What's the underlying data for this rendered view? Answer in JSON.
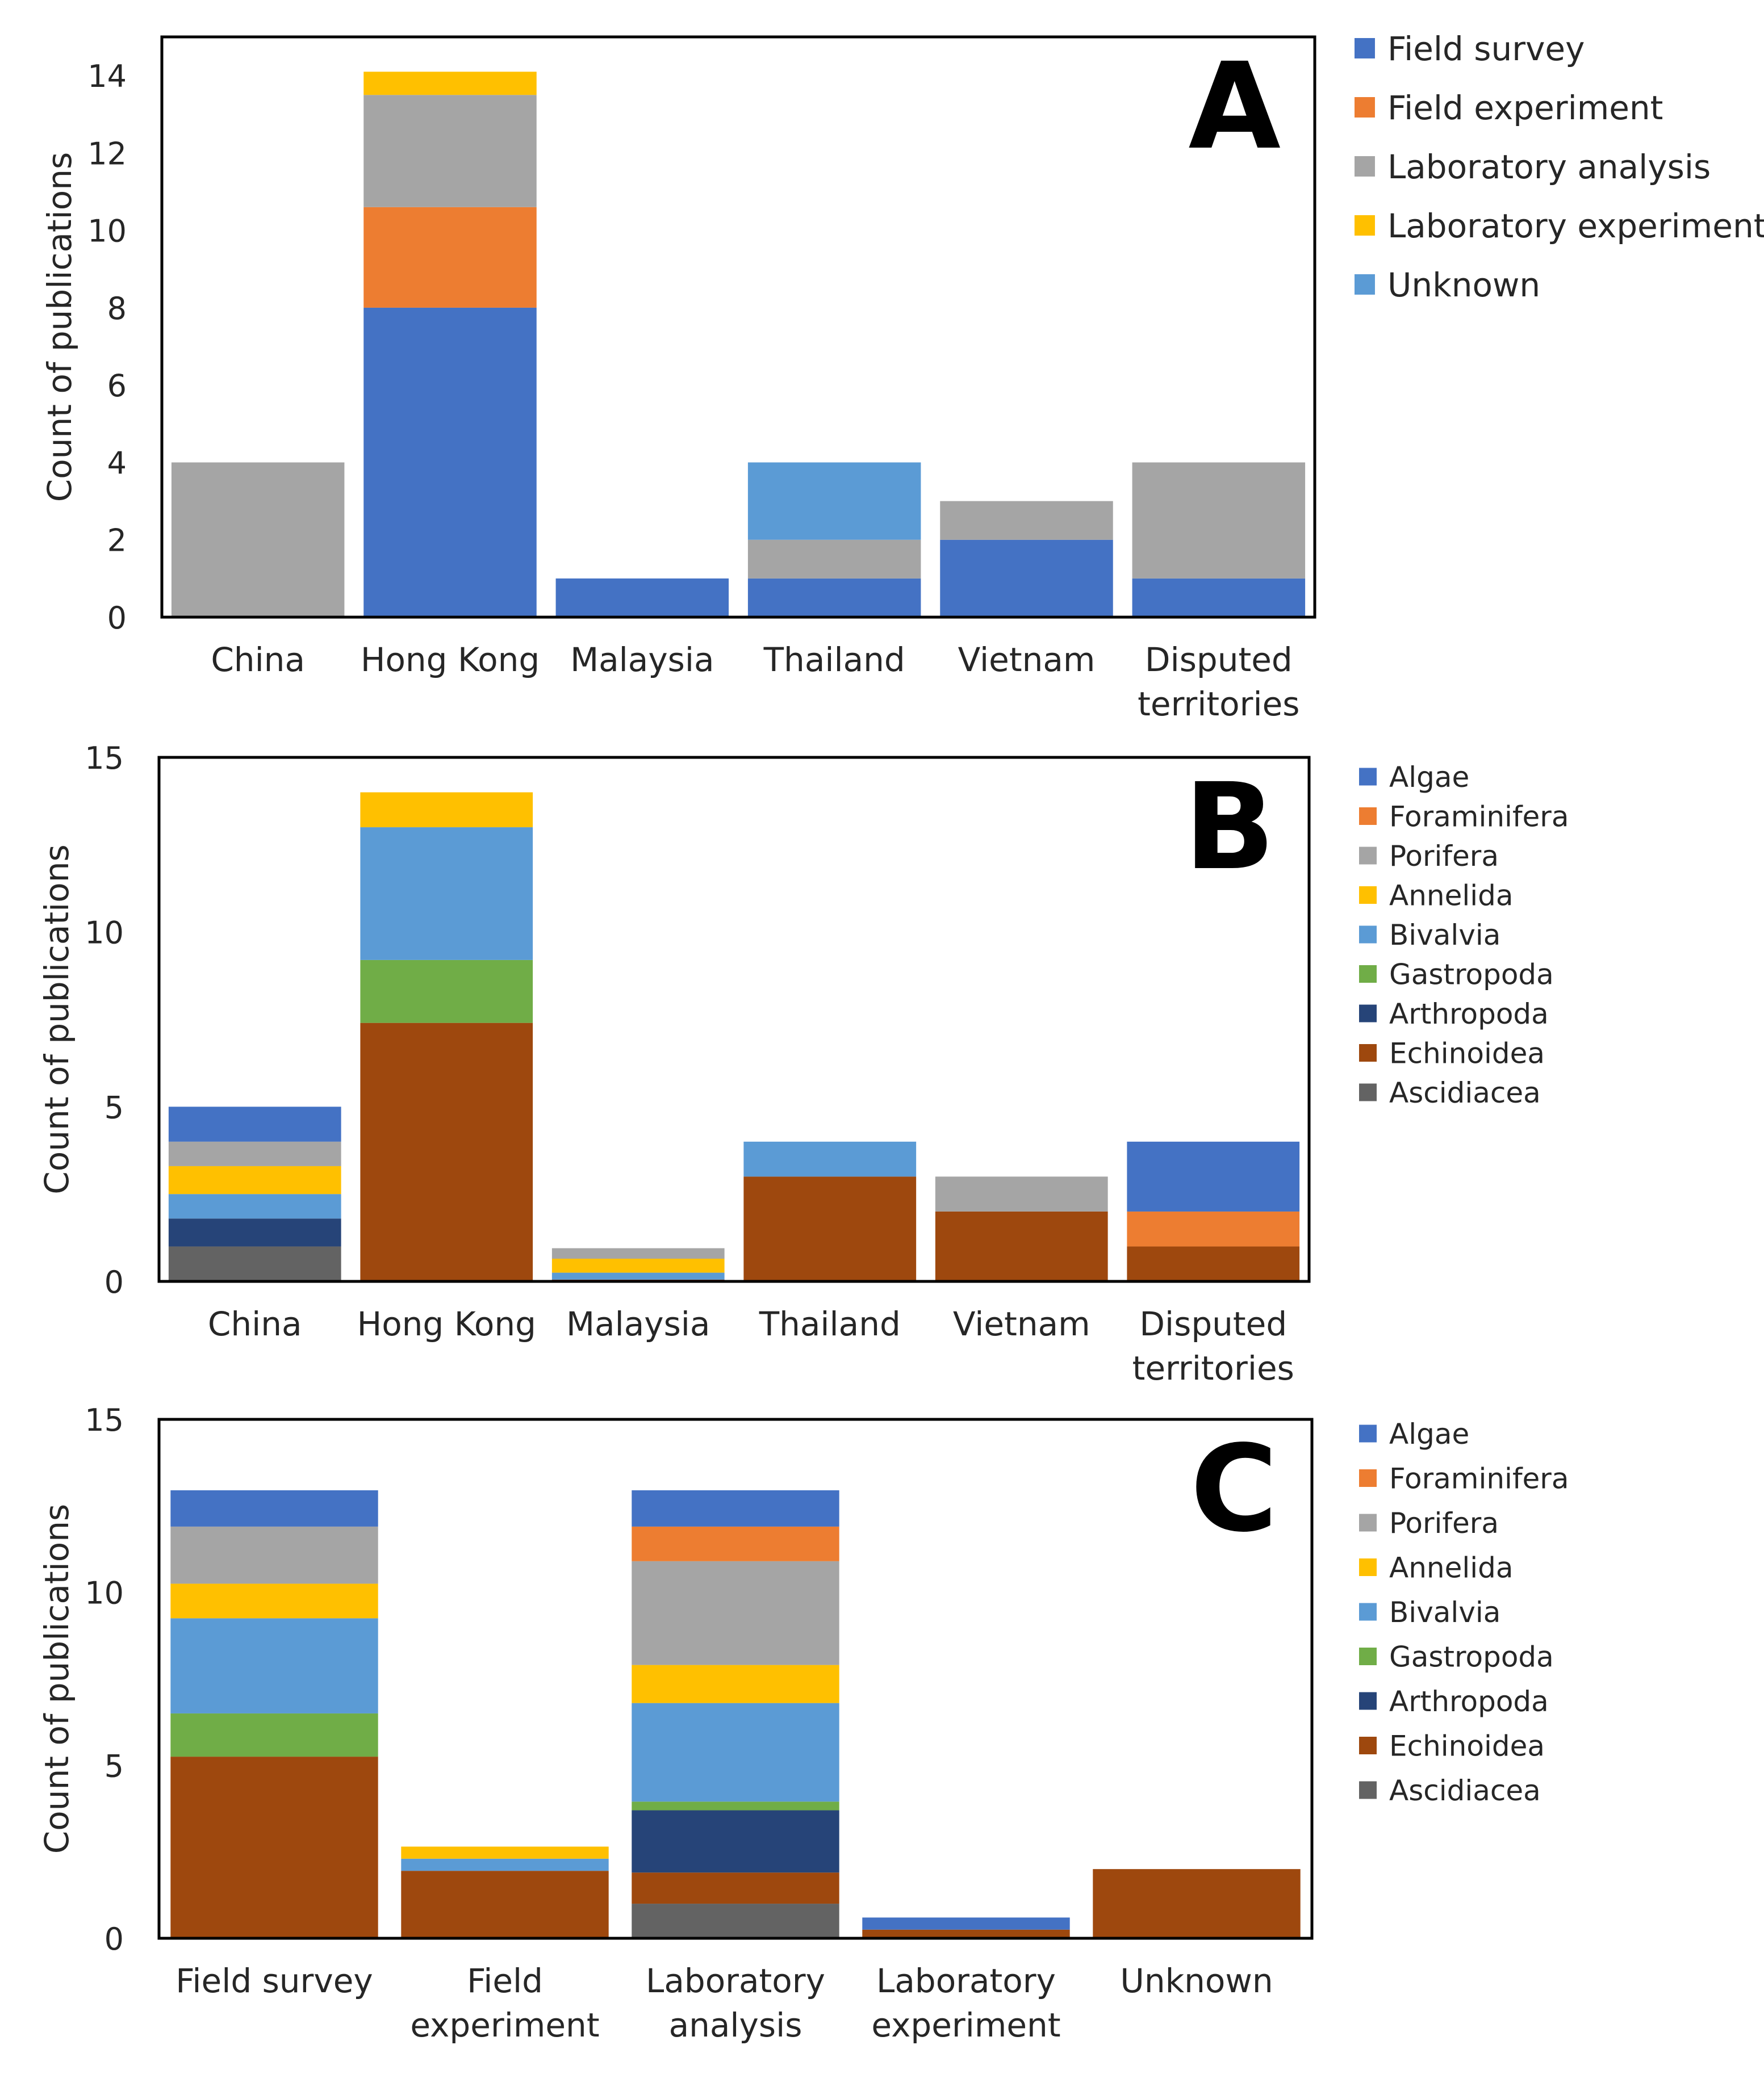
{
  "colors": {
    "Field survey": "#4472C4",
    "Field experiment": "#ED7D31",
    "Laboratory analysis": "#A5A5A5",
    "Laboratory experiment": "#FFC000",
    "Unknown": "#5B9BD5",
    "Algae": "#4472C4",
    "Foraminifera": "#ED7D31",
    "Porifera": "#A5A5A5",
    "Annelida": "#FFC000",
    "Bivalvia": "#5B9BD5",
    "Gastropoda": "#70AD47",
    "Arthropoda": "#264478",
    "Echinoidea": "#9E480E",
    "Ascidiacea": "#636363"
  },
  "chart_data": [
    {
      "type": "bar",
      "stacked": true,
      "panel_label": "A",
      "ylabel": "Count of publications",
      "xlabel": "",
      "ylim": [
        0,
        15
      ],
      "yticks": [
        "0",
        "2",
        "4",
        "6",
        "8",
        "10",
        "12",
        "14"
      ],
      "ytick_values": [
        0,
        2,
        4,
        6,
        8,
        10,
        12,
        14
      ],
      "categories": [
        [
          "China"
        ],
        [
          "Hong Kong"
        ],
        [
          "Malaysia"
        ],
        [
          "Thailand"
        ],
        [
          "Vietnam"
        ],
        [
          "Disputed",
          "territories"
        ]
      ],
      "series": [
        {
          "name": "Field survey",
          "values": [
            0,
            8,
            1,
            1,
            2,
            1
          ]
        },
        {
          "name": "Field experiment",
          "values": [
            0,
            2.6,
            0,
            0,
            0,
            0
          ]
        },
        {
          "name": "Laboratory analysis",
          "values": [
            4,
            2.9,
            0,
            1,
            1,
            3
          ]
        },
        {
          "name": "Laboratory experiment",
          "values": [
            0,
            0.6,
            0,
            0,
            0,
            0
          ]
        },
        {
          "name": "Unknown",
          "values": [
            0,
            0,
            0,
            2,
            0,
            0
          ]
        }
      ],
      "legend": [
        "Field survey",
        "Field experiment",
        "Laboratory analysis",
        "Laboratory experiment",
        "Unknown"
      ],
      "legend_position": "right"
    },
    {
      "type": "bar",
      "stacked": true,
      "panel_label": "B",
      "ylabel": "Count of publications",
      "xlabel": "",
      "ylim": [
        0,
        15
      ],
      "yticks": [
        "0",
        "5",
        "10",
        "15"
      ],
      "ytick_values": [
        0,
        5,
        10,
        15
      ],
      "categories": [
        [
          "China"
        ],
        [
          "Hong Kong"
        ],
        [
          "Malaysia"
        ],
        [
          "Thailand"
        ],
        [
          "Vietnam"
        ],
        [
          "Disputed",
          "territories"
        ]
      ],
      "series": [
        {
          "name": "Ascidiacea",
          "values": [
            1,
            0,
            0,
            0,
            0,
            0
          ]
        },
        {
          "name": "Echinoidea",
          "values": [
            0,
            7.4,
            0.05,
            3,
            2,
            1
          ]
        },
        {
          "name": "Arthropoda",
          "values": [
            0.8,
            0,
            0,
            0,
            0,
            0
          ]
        },
        {
          "name": "Gastropoda",
          "values": [
            0,
            1.8,
            0,
            0,
            0,
            0
          ]
        },
        {
          "name": "Bivalvia",
          "values": [
            0.7,
            3.8,
            0.2,
            1,
            0,
            0
          ]
        },
        {
          "name": "Annelida",
          "values": [
            0.8,
            1,
            0.4,
            0,
            0,
            0
          ]
        },
        {
          "name": "Porifera",
          "values": [
            0.7,
            0,
            0.3,
            0,
            1,
            0
          ]
        },
        {
          "name": "Foraminifera",
          "values": [
            0,
            0,
            0,
            0,
            0,
            1
          ]
        },
        {
          "name": "Algae",
          "values": [
            1,
            0,
            0,
            0,
            0,
            2
          ]
        }
      ],
      "legend": [
        "Algae",
        "Foraminifera",
        "Porifera",
        "Annelida",
        "Bivalvia",
        "Gastropoda",
        "Arthropoda",
        "Echinoidea",
        "Ascidiacea"
      ],
      "legend_position": "right"
    },
    {
      "type": "bar",
      "stacked": true,
      "panel_label": "C",
      "ylabel": "Count of publications",
      "xlabel": "",
      "ylim": [
        0,
        15
      ],
      "yticks": [
        "0",
        "5",
        "10",
        "15"
      ],
      "ytick_values": [
        0,
        5,
        10,
        15
      ],
      "categories": [
        [
          "Field survey"
        ],
        [
          "Field",
          "experiment"
        ],
        [
          "Laboratory",
          "analysis"
        ],
        [
          "Laboratory",
          "experiment"
        ],
        [
          "Unknown"
        ]
      ],
      "series": [
        {
          "name": "Ascidiacea",
          "values": [
            0,
            0,
            1,
            0,
            0
          ]
        },
        {
          "name": "Echinoidea",
          "values": [
            5.25,
            1.95,
            0.9,
            0.25,
            2
          ]
        },
        {
          "name": "Arthropoda",
          "values": [
            0,
            0,
            1.8,
            0,
            0
          ]
        },
        {
          "name": "Gastropoda",
          "values": [
            1.25,
            0,
            0.25,
            0,
            0
          ]
        },
        {
          "name": "Bivalvia",
          "values": [
            2.75,
            0.35,
            2.85,
            0,
            0
          ]
        },
        {
          "name": "Annelida",
          "values": [
            1,
            0.35,
            1.1,
            0,
            0
          ]
        },
        {
          "name": "Porifera",
          "values": [
            1.65,
            0,
            3,
            0,
            0
          ]
        },
        {
          "name": "Foraminifera",
          "values": [
            0,
            0,
            1,
            0,
            0
          ]
        },
        {
          "name": "Algae",
          "values": [
            1.05,
            0,
            1.05,
            0.35,
            0
          ]
        }
      ],
      "legend": [
        "Algae",
        "Foraminifera",
        "Porifera",
        "Annelida",
        "Bivalvia",
        "Gastropoda",
        "Arthropoda",
        "Echinoidea",
        "Ascidiacea"
      ],
      "legend_position": "right"
    }
  ]
}
